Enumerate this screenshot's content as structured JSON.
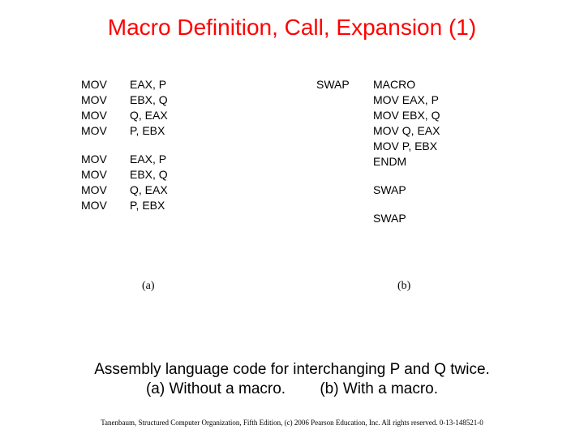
{
  "title": "Macro Definition, Call, Expansion (1)",
  "colA": {
    "block1": [
      {
        "op": "MOV",
        "args": "EAX, P"
      },
      {
        "op": "MOV",
        "args": "EBX, Q"
      },
      {
        "op": "MOV",
        "args": "Q, EAX"
      },
      {
        "op": "MOV",
        "args": "P, EBX"
      }
    ],
    "block2": [
      {
        "op": "MOV",
        "args": "EAX, P"
      },
      {
        "op": "MOV",
        "args": "EBX, Q"
      },
      {
        "op": "MOV",
        "args": "Q, EAX"
      },
      {
        "op": "MOV",
        "args": "P, EBX"
      }
    ],
    "label": "(a)"
  },
  "colB": {
    "macroDef": [
      {
        "op": "SWAP",
        "args": "MACRO"
      },
      {
        "op": "",
        "args": "MOV EAX, P"
      },
      {
        "op": "",
        "args": "MOV EBX, Q"
      },
      {
        "op": "",
        "args": "MOV Q, EAX"
      },
      {
        "op": "",
        "args": "MOV P, EBX"
      },
      {
        "op": "",
        "args": "ENDM"
      }
    ],
    "call1": "SWAP",
    "call2": "SWAP",
    "label": "(b)"
  },
  "caption_line1": "Assembly language code for interchanging P and Q twice.",
  "caption_line2": "(a) Without a macro.        (b) With a macro.",
  "footer": "Tanenbaum, Structured Computer Organization, Fifth Edition, (c) 2006 Pearson Education, Inc. All rights reserved. 0-13-148521-0",
  "colors": {
    "title": "#ff0000",
    "text": "#000000",
    "background": "#ffffff"
  },
  "typography": {
    "title_fontsize": 28,
    "code_fontsize": 14,
    "caption_fontsize": 19,
    "footer_fontsize": 9
  }
}
